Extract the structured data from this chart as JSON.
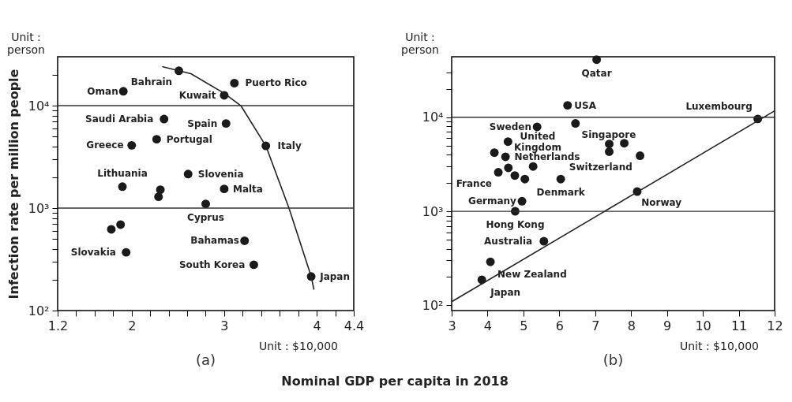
{
  "chart_data": [
    {
      "type": "scatter",
      "title": "(a)",
      "ylabel": "Infection rate per million people",
      "xlabel": "Nominal GDP per capita in 2018",
      "log": "y",
      "xlim": [
        1.2,
        4.4
      ],
      "ylim": [
        100,
        30000
      ],
      "xticks": [
        1.2,
        {
          "value": 1.4,
          "label": null
        },
        {
          "value": 1.6,
          "label": null
        },
        {
          "value": 1.8,
          "label": null
        },
        2,
        {
          "value": 2.2,
          "label": null
        },
        {
          "value": 2.4,
          "label": null
        },
        {
          "value": 2.6,
          "label": null
        },
        {
          "value": 2.8,
          "label": null
        },
        3,
        {
          "value": 3.2,
          "label": null
        },
        {
          "value": 3.4,
          "label": null
        },
        {
          "value": 3.6,
          "label": null
        },
        {
          "value": 3.8,
          "label": null
        },
        4,
        {
          "value": 4.2,
          "label": null
        },
        4.4
      ],
      "yticks": [
        {
          "value": 100,
          "label": "10²"
        },
        {
          "value": 200,
          "label": null
        },
        {
          "value": 300,
          "label": null
        },
        {
          "value": 400,
          "label": null
        },
        {
          "value": 500,
          "label": null
        },
        {
          "value": 600,
          "label": null
        },
        {
          "value": 700,
          "label": null
        },
        {
          "value": 800,
          "label": null
        },
        {
          "value": 900,
          "label": null
        },
        {
          "value": 1000,
          "label": "10³"
        },
        {
          "value": 2000,
          "label": null
        },
        {
          "value": 3000,
          "label": null
        },
        {
          "value": 4000,
          "label": null
        },
        {
          "value": 5000,
          "label": null
        },
        {
          "value": 6000,
          "label": null
        },
        {
          "value": 7000,
          "label": null
        },
        {
          "value": 8000,
          "label": null
        },
        {
          "value": 9000,
          "label": null
        },
        {
          "value": 10000,
          "label": "10⁴"
        },
        {
          "value": 20000,
          "label": null
        }
      ],
      "ref_lines": [
        {
          "axis": "y",
          "value": 1000
        },
        {
          "axis": "y",
          "value": 10000
        }
      ],
      "series": [
        {
          "marker": "circle",
          "color": "#1a1a1a",
          "x": [
            2.51,
            3.11,
            1.91,
            3.0,
            2.35,
            3.02,
            2.27,
            2.0,
            3.45,
            2.61,
            1.9,
            2.31,
            3.0,
            2.29,
            2.8,
            1.88,
            1.78,
            3.22,
            1.94,
            3.32,
            3.94
          ],
          "values": [
            21900,
            16600,
            13800,
            12600,
            7400,
            6700,
            4700,
            4100,
            4050,
            2150,
            1620,
            1510,
            1540,
            1290,
            1100,
            690,
            620,
            480,
            370,
            280,
            215
          ]
        },
        {
          "type": "line",
          "color": "#222222",
          "x": [
            2.33,
            2.51,
            2.64,
            3.0,
            3.18,
            3.45,
            3.7,
            3.94,
            3.97
          ],
          "values": [
            24000,
            21900,
            20500,
            13200,
            10000,
            4050,
            1000,
            215,
            160
          ]
        }
      ],
      "annotations": [
        "Unit :\nperson",
        "Unit : $10,000",
        {
          "text": "Bahrain",
          "x": 2.51,
          "y": 21900
        },
        {
          "text": "Puerto Rico",
          "x": 3.11,
          "y": 16600
        },
        {
          "text": "Oman",
          "x": 1.91,
          "y": 13800
        },
        {
          "text": "Kuwait",
          "x": 3.0,
          "y": 12600
        },
        {
          "text": "Saudi Arabia",
          "x": 2.35,
          "y": 7400
        },
        {
          "text": "Spain",
          "x": 3.02,
          "y": 6700
        },
        {
          "text": "Italy",
          "x": 3.45,
          "y": 4050
        },
        {
          "text": "Portugal",
          "x": 2.27,
          "y": 4700
        },
        {
          "text": "Greece",
          "x": 2.0,
          "y": 4100
        },
        {
          "text": "Slovenia",
          "x": 2.61,
          "y": 2150
        },
        {
          "text": "Malta",
          "x": 3.0,
          "y": 1540
        },
        {
          "text": "Lithuania",
          "x": 1.9,
          "y": 1620
        },
        {
          "text": "Cyprus",
          "x": 2.8,
          "y": 1100
        },
        {
          "text": "Bahamas",
          "x": 3.22,
          "y": 480
        },
        {
          "text": "Japan",
          "x": 3.94,
          "y": 215
        },
        {
          "text": "South Korea",
          "x": 3.32,
          "y": 280
        },
        {
          "text": "Slovakia",
          "x": 1.94,
          "y": 370
        }
      ]
    },
    {
      "type": "scatter",
      "title": "(b)",
      "log": "y",
      "xlim": [
        3,
        12
      ],
      "ylim": [
        88,
        44000
      ],
      "xticks": [
        3,
        4,
        5,
        6,
        7,
        8,
        9,
        10,
        11,
        12
      ],
      "yticks": [
        {
          "value": 100,
          "label": "10²"
        },
        {
          "value": 200,
          "label": null
        },
        {
          "value": 300,
          "label": null
        },
        {
          "value": 400,
          "label": null
        },
        {
          "value": 500,
          "label": null
        },
        {
          "value": 600,
          "label": null
        },
        {
          "value": 700,
          "label": null
        },
        {
          "value": 800,
          "label": null
        },
        {
          "value": 900,
          "label": null
        },
        {
          "value": 1000,
          "label": "10³"
        },
        {
          "value": 2000,
          "label": null
        },
        {
          "value": 3000,
          "label": null
        },
        {
          "value": 4000,
          "label": null
        },
        {
          "value": 5000,
          "label": null
        },
        {
          "value": 6000,
          "label": null
        },
        {
          "value": 7000,
          "label": null
        },
        {
          "value": 8000,
          "label": null
        },
        {
          "value": 9000,
          "label": null
        },
        {
          "value": 10000,
          "label": "10⁴"
        },
        {
          "value": 20000,
          "label": null
        },
        {
          "value": 30000,
          "label": null
        }
      ],
      "ref_lines": [
        {
          "axis": "y",
          "value": 1000
        },
        {
          "axis": "y",
          "value": 10000
        }
      ],
      "series": [
        {
          "marker": "circle",
          "color": "#1a1a1a",
          "x": [
            7.04,
            6.23,
            11.53,
            6.45,
            5.38,
            4.57,
            7.39,
            7.81,
            7.39,
            8.25,
            4.19,
            4.5,
            5.27,
            4.58,
            4.3,
            4.76,
            5.04,
            6.04,
            8.17,
            4.96,
            4.77,
            5.57,
            4.08,
            3.84
          ],
          "values": [
            41000,
            13400,
            9600,
            8600,
            7900,
            5500,
            5200,
            5300,
            4300,
            3900,
            4200,
            3800,
            3000,
            2900,
            2600,
            2400,
            2200,
            2200,
            1620,
            1280,
            1000,
            480,
            290,
            187
          ]
        },
        {
          "type": "line",
          "color": "#222222",
          "x": [
            3.01,
            12
          ],
          "values": [
            110,
            11700
          ]
        }
      ],
      "annotations": [
        "Unit :\nperson",
        "Unit : $10,000",
        {
          "text": "Qatar",
          "x": 7.04,
          "y": 41000
        },
        {
          "text": "USA",
          "x": 6.23,
          "y": 13400
        },
        {
          "text": "Luxembourg",
          "x": 11.53,
          "y": 9600
        },
        {
          "text": "United\nKingdom",
          "x": 4.57,
          "y": 5500
        },
        {
          "text": "Singapore",
          "x": 6.45,
          "y": 8600
        },
        {
          "text": "Sweden",
          "x": 5.38,
          "y": 7900
        },
        {
          "text": "Switzerland",
          "x": 8.25,
          "y": 3900
        },
        {
          "text": "Netherlands",
          "x": 4.5,
          "y": 3800
        },
        {
          "text": "France",
          "x": 4.3,
          "y": 2600
        },
        {
          "text": "Denmark",
          "x": 6.04,
          "y": 2200
        },
        {
          "text": "Norway",
          "x": 8.17,
          "y": 1620
        },
        {
          "text": "Germany",
          "x": 4.96,
          "y": 1280
        },
        {
          "text": "Hong Kong",
          "x": 4.77,
          "y": 1000
        },
        {
          "text": "Australia",
          "x": 5.57,
          "y": 480
        },
        {
          "text": "New Zealand",
          "x": 4.08,
          "y": 290
        },
        {
          "text": "Japan",
          "x": 3.84,
          "y": 187
        }
      ]
    }
  ]
}
